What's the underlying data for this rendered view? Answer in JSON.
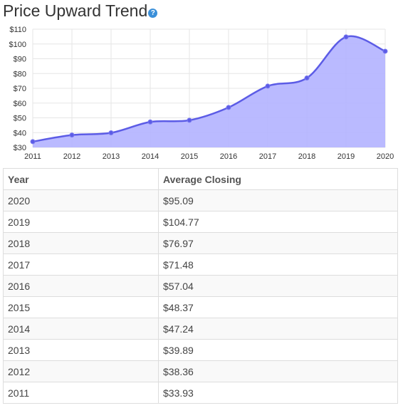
{
  "title": "Price Upward Trend",
  "help_icon": "help-icon",
  "colors": {
    "line": "#5c5ce6",
    "fill": "#b3b3ff",
    "help_icon": "#3a8fd9",
    "grid": "#e6e6e6"
  },
  "chart_data": {
    "type": "area",
    "x": [
      "2011",
      "2012",
      "2013",
      "2014",
      "2015",
      "2016",
      "2017",
      "2018",
      "2019",
      "2020"
    ],
    "series": [
      {
        "values": [
          33.93,
          38.36,
          39.89,
          47.24,
          48.37,
          57.04,
          71.48,
          76.97,
          104.77,
          95.09
        ]
      }
    ],
    "ylim": [
      30,
      110
    ],
    "yticks": [
      30,
      40,
      50,
      60,
      70,
      80,
      90,
      100,
      110
    ],
    "ytick_labels": [
      "$30",
      "$40",
      "$50",
      "$60",
      "$70",
      "$80",
      "$90",
      "$100",
      "$110"
    ],
    "xlabel": "",
    "ylabel": "",
    "grid": true,
    "smooth": true,
    "markers": true
  },
  "table": {
    "headers": [
      "Year",
      "Average Closing"
    ],
    "rows": [
      [
        "2020",
        "$95.09"
      ],
      [
        "2019",
        "$104.77"
      ],
      [
        "2018",
        "$76.97"
      ],
      [
        "2017",
        "$71.48"
      ],
      [
        "2016",
        "$57.04"
      ],
      [
        "2015",
        "$48.37"
      ],
      [
        "2014",
        "$47.24"
      ],
      [
        "2013",
        "$39.89"
      ],
      [
        "2012",
        "$38.36"
      ],
      [
        "2011",
        "$33.93"
      ]
    ]
  }
}
